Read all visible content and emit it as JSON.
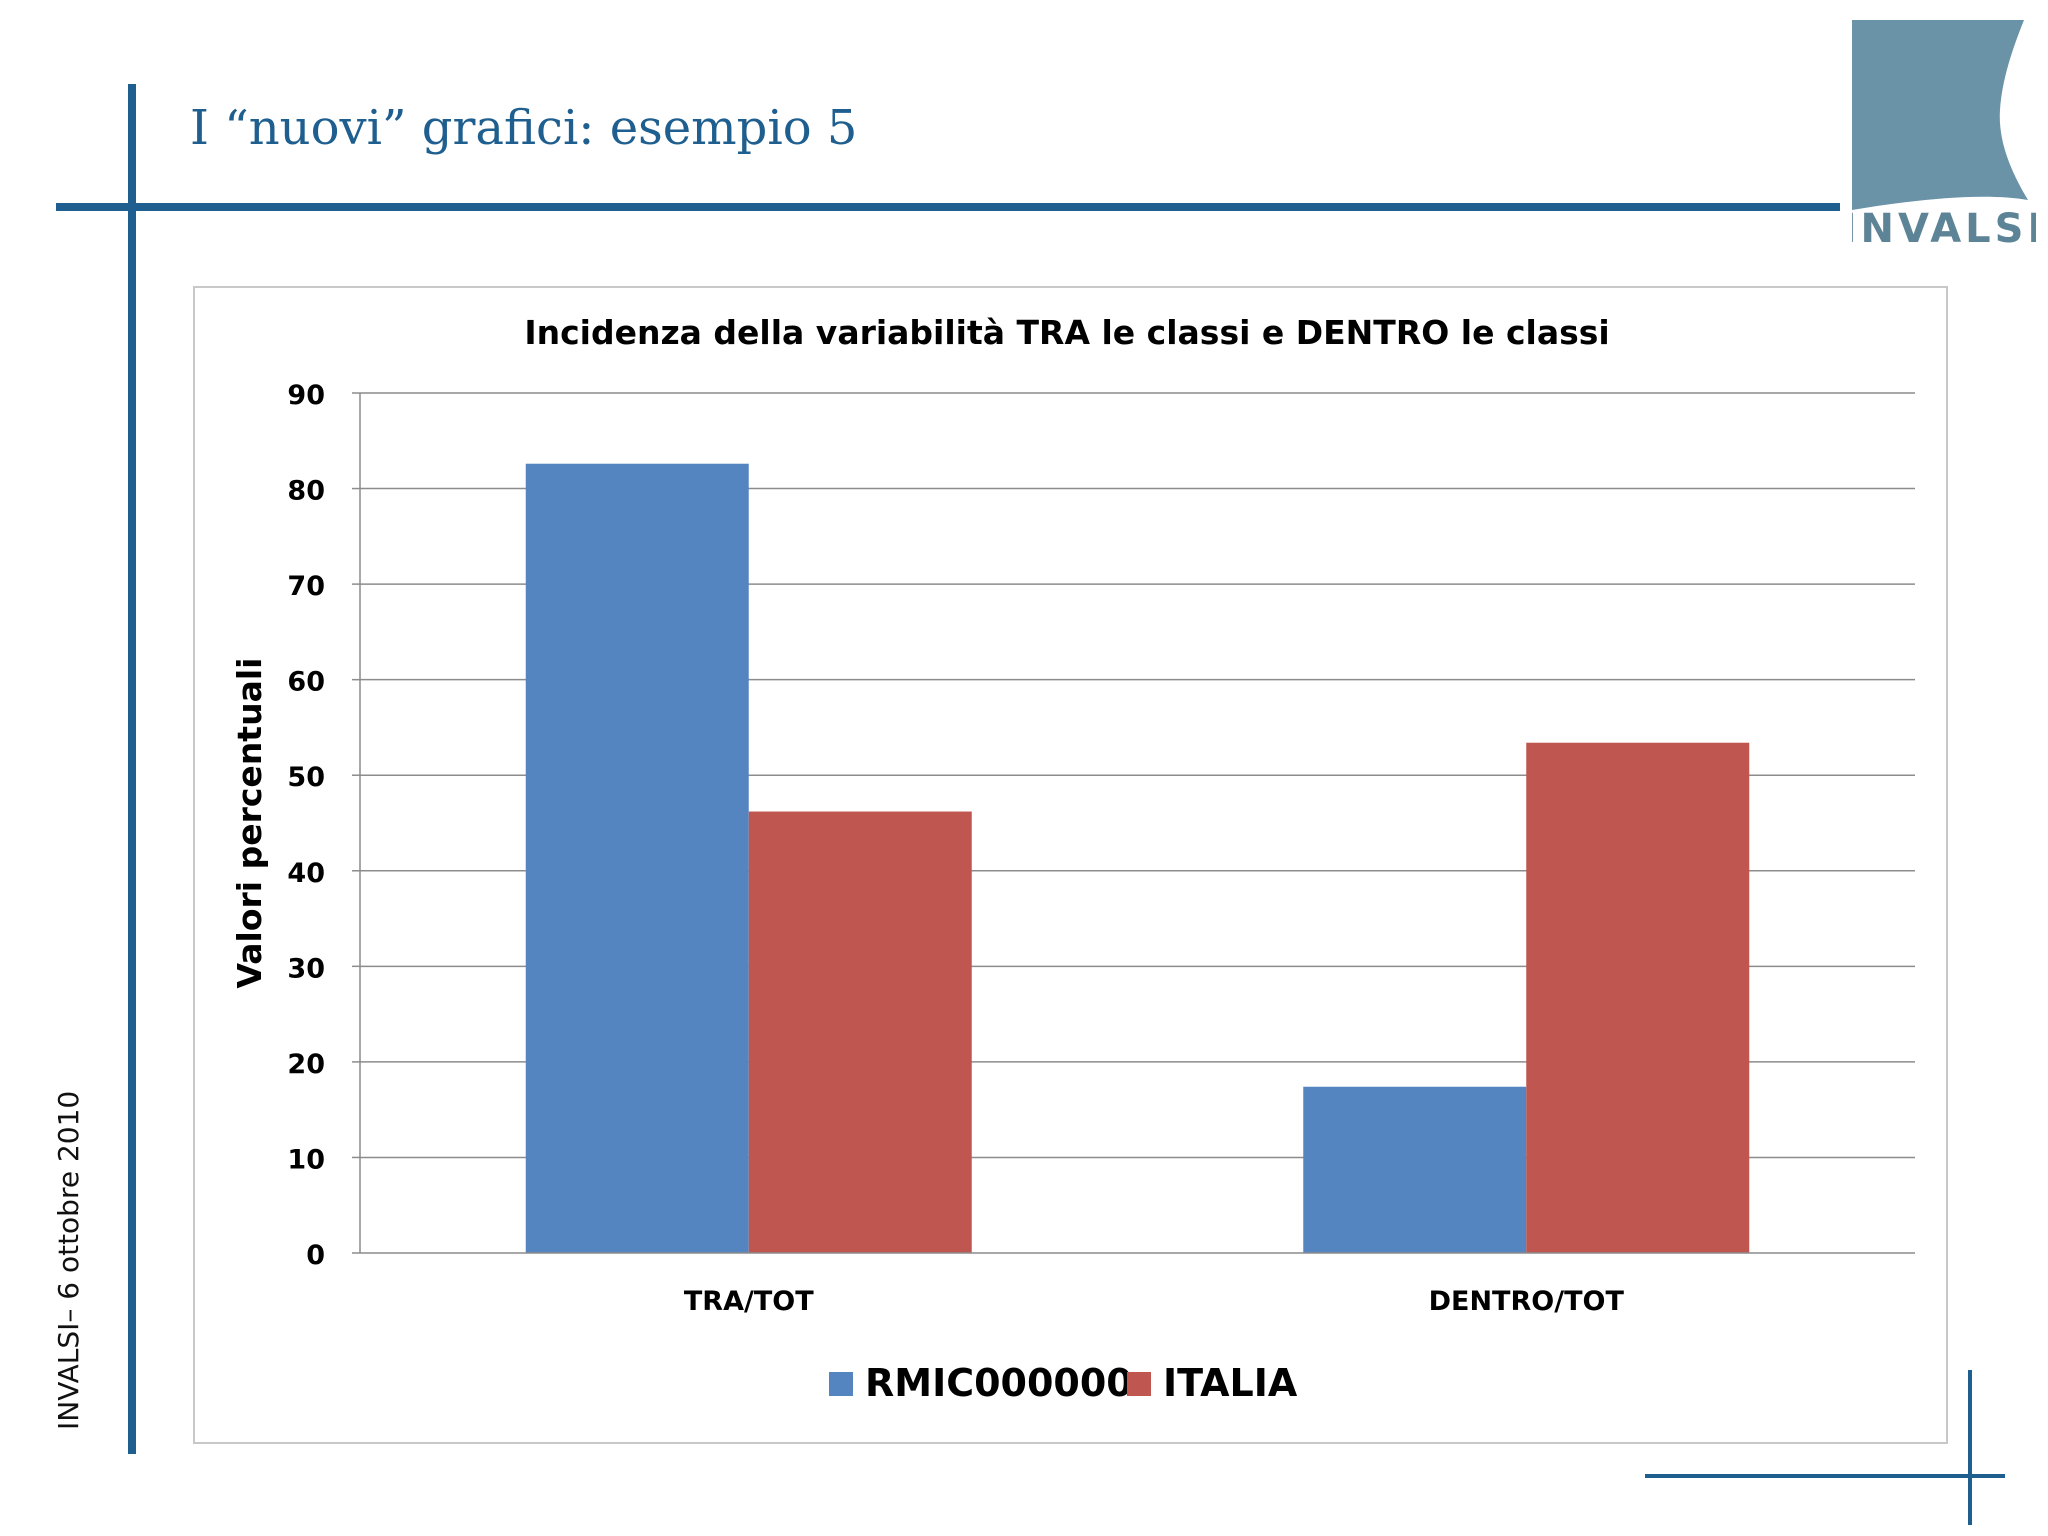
{
  "slide": {
    "title": "I “nuovi” grafici: esempio 5",
    "footer_vertical": "INVALSI–  6 ottobre 2010",
    "logo_text": "INVALSI"
  },
  "colors": {
    "accent": "#1f5f8f",
    "logo_block": "#6a93a8",
    "series_rmic": "#5585c0",
    "series_italia": "#c05650"
  },
  "chart_data": {
    "type": "bar",
    "title": "Incidenza della variabilità TRA le classi e DENTRO le classi",
    "xlabel": "",
    "ylabel": "Valori percentuali",
    "ylim": [
      0,
      90
    ],
    "yticks": [
      0,
      10,
      20,
      30,
      40,
      50,
      60,
      70,
      80,
      90
    ],
    "categories": [
      "TRA/TOT",
      "DENTRO/TOT"
    ],
    "series": [
      {
        "name": "RMIC000000",
        "values": [
          82.6,
          17.4
        ],
        "color": "#5585c0"
      },
      {
        "name": "ITALIA",
        "values": [
          46.2,
          53.4
        ],
        "color": "#c05650"
      }
    ],
    "grid": true,
    "legend_position": "bottom"
  }
}
